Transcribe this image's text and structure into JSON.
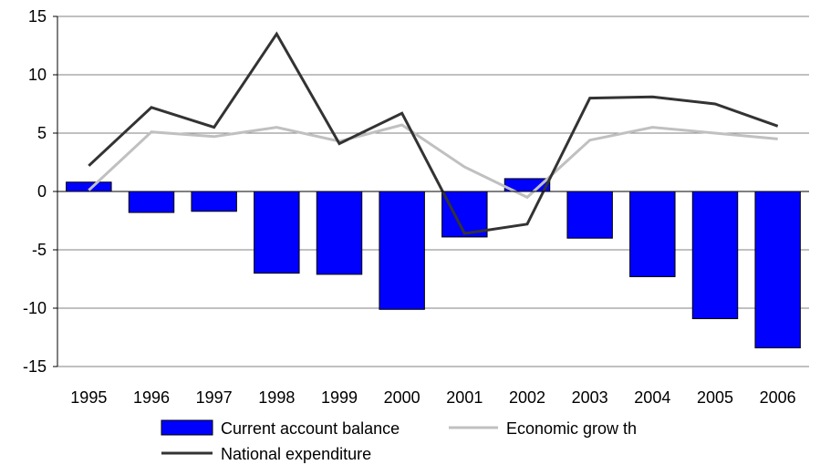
{
  "chart_data": {
    "type": "bar",
    "title": "",
    "xlabel": "",
    "ylabel": "",
    "categories": [
      "1995",
      "1996",
      "1997",
      "1998",
      "1999",
      "2000",
      "2001",
      "2002",
      "2003",
      "2004",
      "2005",
      "2006"
    ],
    "ylim": [
      -15,
      15
    ],
    "yticks": [
      -15,
      -10,
      -5,
      0,
      5,
      10,
      15
    ],
    "grid": true,
    "legend_position": "bottom",
    "series": [
      {
        "name": "Current account balance",
        "kind": "bar",
        "color": "#0000ff",
        "values": [
          0.8,
          -1.8,
          -1.7,
          -7.0,
          -7.1,
          -10.1,
          -3.9,
          1.1,
          -4.0,
          -7.3,
          -10.9,
          -13.4
        ]
      },
      {
        "name": "Economic grow th",
        "kind": "line",
        "color": "#c0c0c0",
        "values": [
          0.1,
          5.1,
          4.7,
          5.5,
          4.3,
          5.7,
          2.1,
          -0.5,
          4.4,
          5.5,
          5.0,
          4.5
        ]
      },
      {
        "name": "National expenditure",
        "kind": "line",
        "color": "#333333",
        "values": [
          2.2,
          7.2,
          5.5,
          13.5,
          4.1,
          6.7,
          -3.6,
          -2.8,
          8.0,
          8.1,
          7.5,
          5.6
        ]
      }
    ]
  }
}
